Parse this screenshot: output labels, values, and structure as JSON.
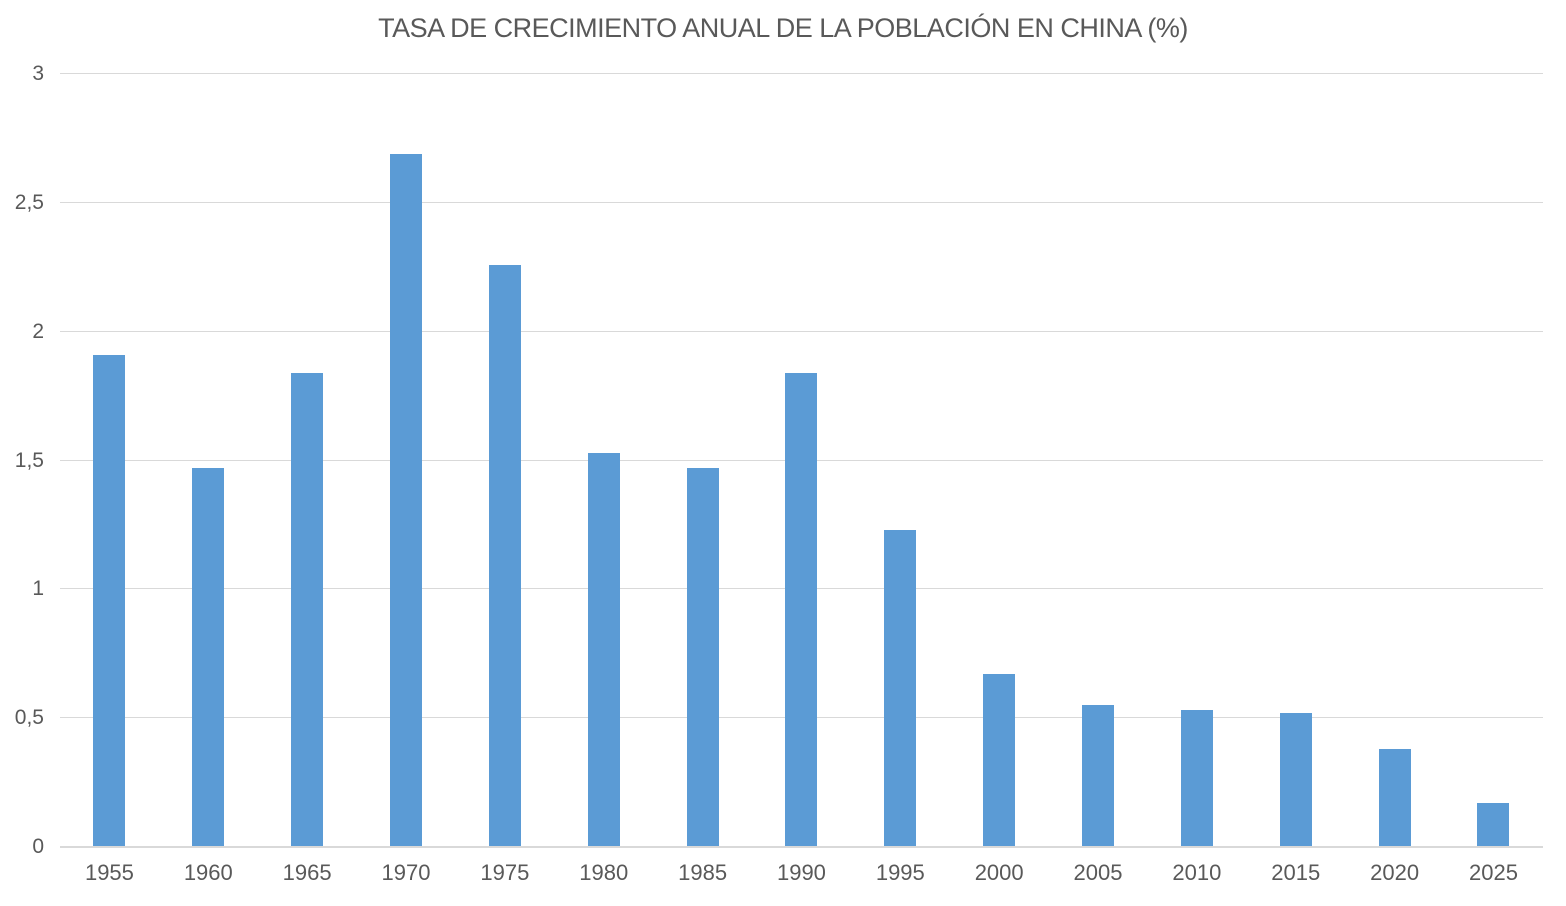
{
  "chart_data": {
    "type": "bar",
    "title": "TASA DE CRECIMIENTO ANUAL DE LA POBLACIÓN EN CHINA (%)",
    "categories": [
      "1955",
      "1960",
      "1965",
      "1970",
      "1975",
      "1980",
      "1985",
      "1990",
      "1995",
      "2000",
      "2005",
      "2010",
      "2015",
      "2020",
      "2025"
    ],
    "values": [
      1.91,
      1.47,
      1.84,
      2.69,
      2.26,
      1.53,
      1.47,
      1.84,
      1.23,
      0.67,
      0.55,
      0.53,
      0.52,
      0.38,
      0.17
    ],
    "xlabel": "",
    "ylabel": "",
    "ylim": [
      0,
      3
    ],
    "y_ticks": [
      {
        "value": 0,
        "label": "0"
      },
      {
        "value": 0.5,
        "label": "0,5"
      },
      {
        "value": 1,
        "label": "1"
      },
      {
        "value": 1.5,
        "label": "1,5"
      },
      {
        "value": 2,
        "label": "2"
      },
      {
        "value": 2.5,
        "label": "2,5"
      },
      {
        "value": 3,
        "label": "3"
      }
    ],
    "decimal_separator": ",",
    "grid": "horizontal",
    "legend_position": "none",
    "bar_color": "#5B9BD5",
    "gridline_color": "#D9D9D9",
    "axis_line_color": "#D9D9D9",
    "text_color": "#595959",
    "background_color": "#FFFFFF"
  }
}
